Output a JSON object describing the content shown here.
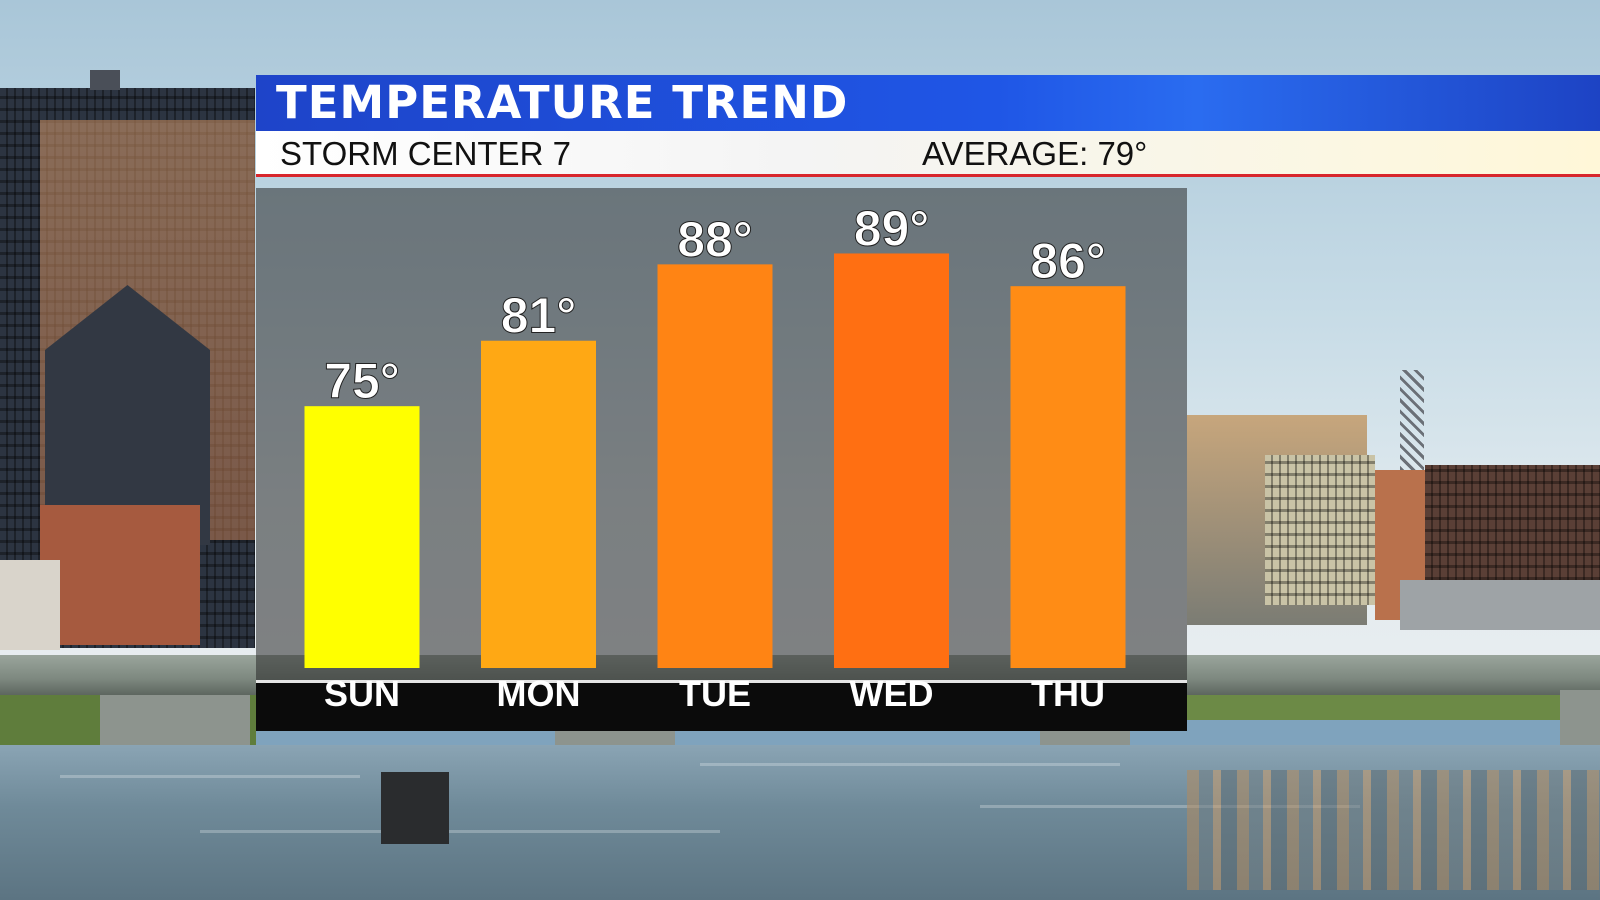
{
  "header": {
    "title": "TEMPERATURE TREND",
    "station": "STORM CENTER 7",
    "average": "AVERAGE: 79°"
  },
  "chart_data": {
    "type": "bar",
    "title": "TEMPERATURE TREND",
    "categories": [
      "SUN",
      "MON",
      "TUE",
      "WED",
      "THU"
    ],
    "values": [
      75,
      81,
      88,
      89,
      86
    ],
    "labels": [
      "75°",
      "81°",
      "88°",
      "89°",
      "86°"
    ],
    "colors": [
      "#ffff00",
      "#ffa814",
      "#ff8414",
      "#ff6f12",
      "#ff8c15"
    ],
    "ylim": [
      51,
      95
    ],
    "grid": false,
    "xlabel": "",
    "ylabel": ""
  }
}
